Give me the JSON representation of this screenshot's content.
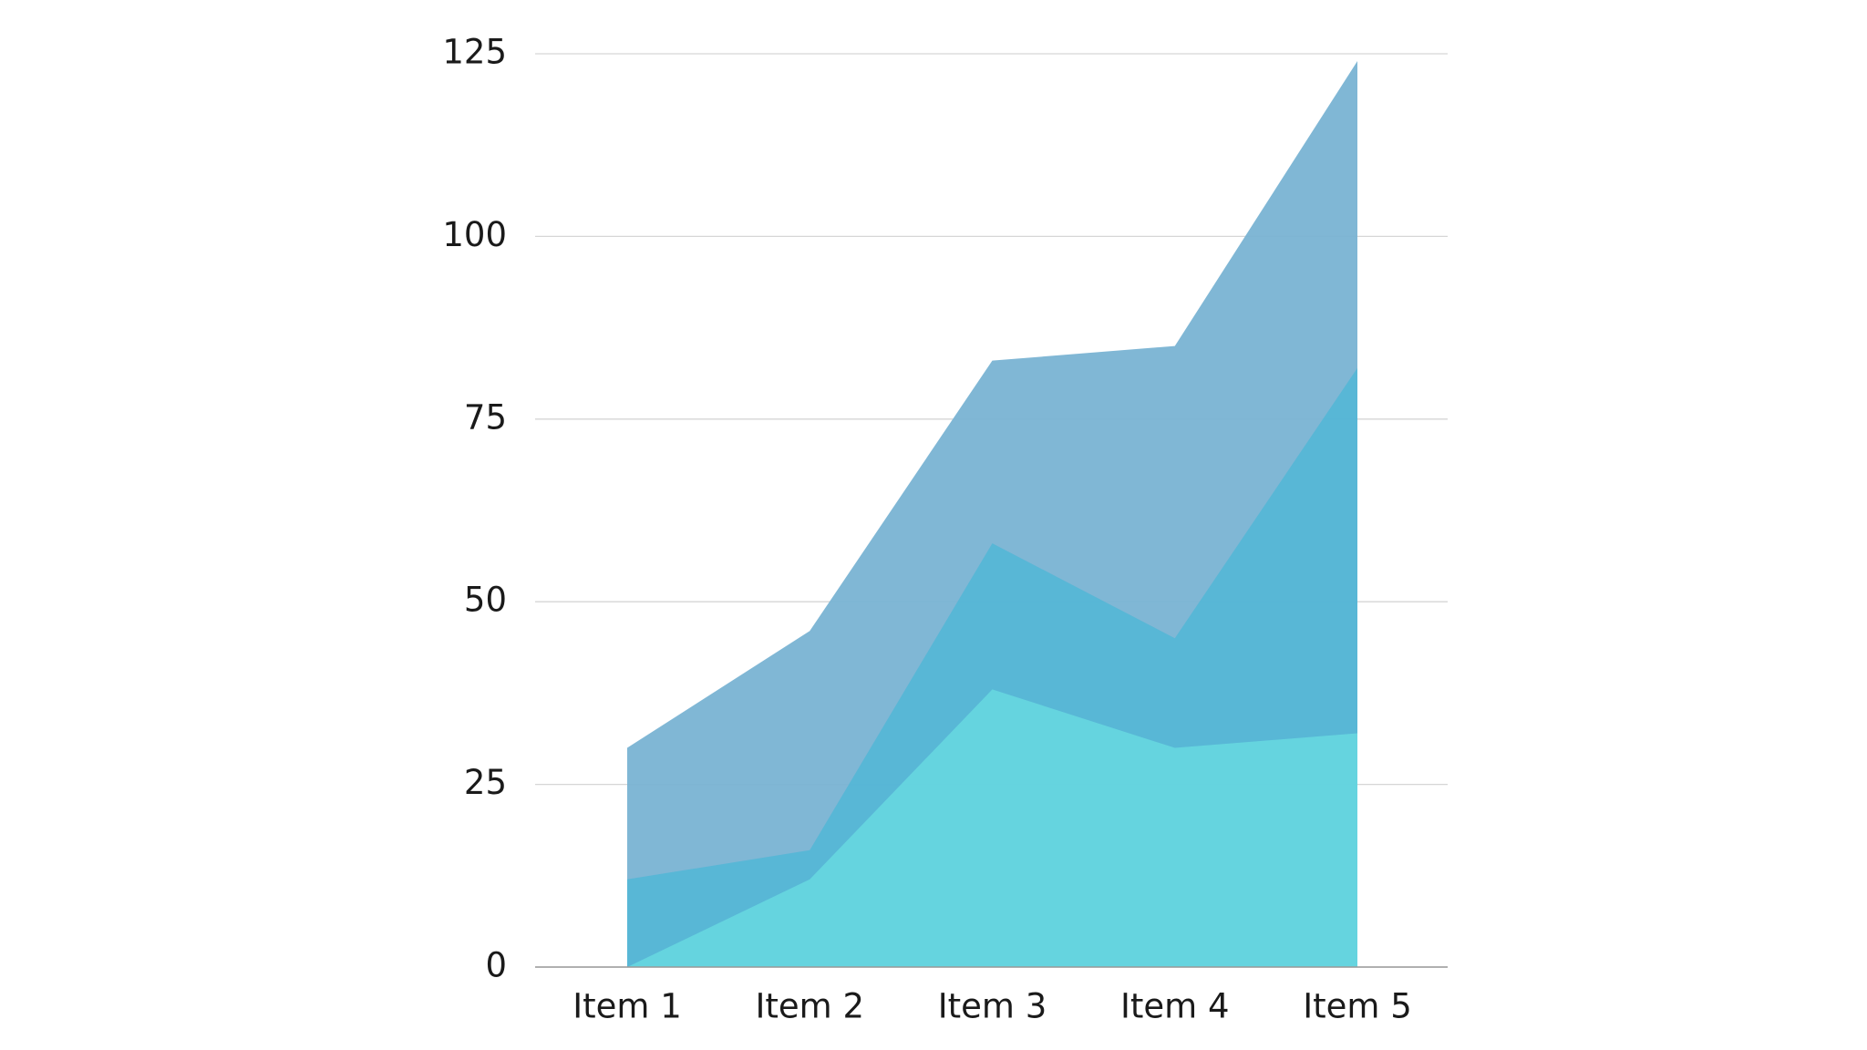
{
  "chart_data": {
    "type": "area",
    "categories": [
      "Item 1",
      "Item 2",
      "Item 3",
      "Item 4",
      "Item 5"
    ],
    "series": [
      {
        "color": "#79b3d3",
        "values": [
          30,
          46,
          83,
          85,
          124
        ]
      },
      {
        "color": "#55b6d6",
        "values": [
          12,
          16,
          58,
          45,
          82
        ]
      },
      {
        "color": "#66d5df",
        "values": [
          0,
          12,
          38,
          30,
          32
        ]
      }
    ],
    "ylim": [
      0,
      125
    ],
    "yticks": [
      0,
      25,
      50,
      75,
      100,
      125
    ],
    "grid": true
  }
}
